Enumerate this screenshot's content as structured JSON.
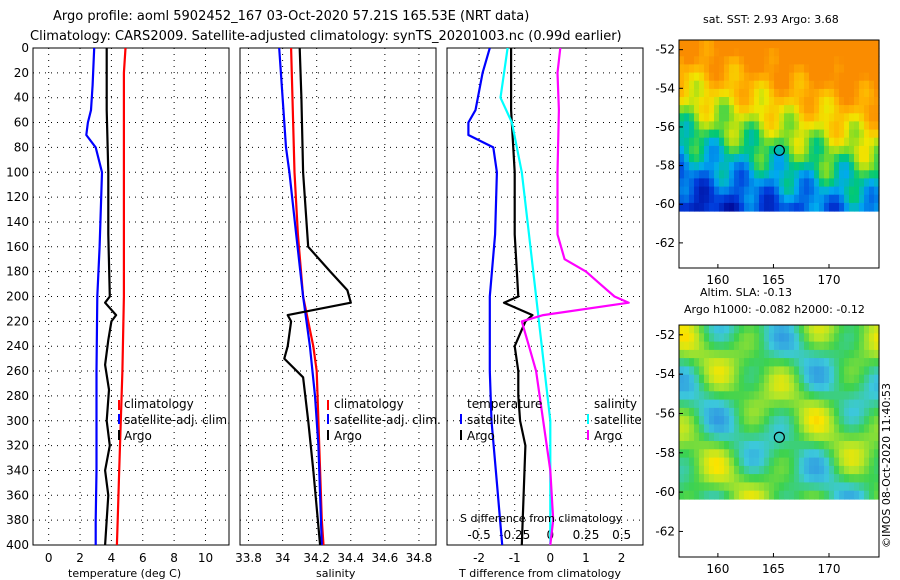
{
  "header": {
    "line1": "Argo profile: aoml 5902452_167 03-Oct-2020 57.21S 165.53E (NRT data)",
    "line2": "Climatology: CARS2009. Satellite-adjusted climatology: synTS_20201003.nc (0.99d earlier)"
  },
  "credit": "©IMOS 08-Oct-2020 11:40:53",
  "colors": {
    "climatology": "#ff0000",
    "satellite": "#0000ff",
    "argo": "#000000",
    "sal_satellite": "#00ffff",
    "sal_argo": "#ff00ff"
  },
  "chart_data": [
    {
      "type": "line",
      "name": "temperature-panel",
      "xlabel": "temperature (deg C)",
      "ylabel": "",
      "xlim": [
        -1,
        11.5
      ],
      "ylim": [
        400,
        0
      ],
      "xticks": [
        0,
        2,
        4,
        6,
        8,
        10
      ],
      "yticks": [
        0,
        20,
        40,
        60,
        80,
        100,
        120,
        140,
        160,
        180,
        200,
        220,
        240,
        260,
        280,
        300,
        320,
        340,
        360,
        380,
        400
      ],
      "legend": [
        "climatology",
        "satellite-adj. clim.",
        "Argo"
      ],
      "series": [
        {
          "name": "climatology",
          "color": "#ff0000",
          "depth": [
            0,
            20,
            60,
            100,
            160,
            200,
            260,
            300,
            340,
            380,
            400
          ],
          "values": [
            4.9,
            4.8,
            4.8,
            4.8,
            4.8,
            4.8,
            4.7,
            4.6,
            4.5,
            4.4,
            4.35
          ]
        },
        {
          "name": "satellite-adj. clim.",
          "color": "#0000ff",
          "depth": [
            0,
            30,
            50,
            60,
            70,
            80,
            100,
            160,
            200,
            260,
            300,
            340,
            380,
            400
          ],
          "values": [
            2.9,
            2.8,
            2.7,
            2.5,
            2.4,
            3.0,
            3.4,
            3.25,
            3.1,
            3.05,
            3.05,
            3.05,
            3.0,
            3.0
          ]
        },
        {
          "name": "Argo",
          "color": "#000000",
          "depth": [
            0,
            50,
            100,
            150,
            200,
            205,
            215,
            220,
            235,
            255,
            275,
            300,
            320,
            340,
            360,
            380,
            400
          ],
          "values": [
            3.7,
            3.7,
            3.8,
            3.8,
            3.9,
            3.6,
            4.3,
            4.0,
            3.8,
            3.6,
            3.85,
            3.7,
            3.9,
            3.6,
            3.8,
            3.7,
            3.6
          ]
        }
      ]
    },
    {
      "type": "line",
      "name": "salinity-panel",
      "xlabel": "salinity",
      "ylabel": "",
      "xlim": [
        33.75,
        34.9
      ],
      "ylim": [
        400,
        0
      ],
      "xticks": [
        33.8,
        34,
        34.2,
        34.4,
        34.6,
        34.8
      ],
      "legend": [
        "climatology",
        "satellite-adj. clim.",
        "Argo"
      ],
      "series": [
        {
          "name": "climatology",
          "color": "#ff0000",
          "depth": [
            0,
            50,
            100,
            150,
            200,
            220,
            240,
            260,
            300,
            340,
            380,
            400
          ],
          "values": [
            34.05,
            34.06,
            34.07,
            34.09,
            34.12,
            34.15,
            34.18,
            34.2,
            34.21,
            34.22,
            34.23,
            34.24
          ]
        },
        {
          "name": "satellite-adj. clim.",
          "color": "#0000ff",
          "depth": [
            0,
            40,
            80,
            100,
            150,
            200,
            240,
            280,
            320,
            360,
            400
          ],
          "values": [
            33.98,
            34.0,
            34.02,
            34.04,
            34.08,
            34.12,
            34.16,
            34.19,
            34.21,
            34.22,
            34.23
          ]
        },
        {
          "name": "Argo",
          "color": "#000000",
          "depth": [
            0,
            40,
            100,
            160,
            180,
            195,
            205,
            215,
            220,
            240,
            250,
            265,
            300,
            340,
            370,
            400
          ],
          "values": [
            34.1,
            34.11,
            34.12,
            34.15,
            34.28,
            34.38,
            34.4,
            34.03,
            34.05,
            34.03,
            34.01,
            34.12,
            34.15,
            34.18,
            34.2,
            34.22
          ]
        }
      ]
    },
    {
      "type": "line",
      "name": "difference-panel",
      "xlabel": "T difference from climatology",
      "xlabel2": "S difference from climatology",
      "xlim": [
        -2.9,
        2.6
      ],
      "ylim": [
        400,
        0
      ],
      "xticks_T": [
        -2,
        -1,
        0,
        1,
        2
      ],
      "xticks_S": [
        -0.5,
        -0.25,
        0,
        0.25,
        0.5
      ],
      "legend": {
        "temperature": [
          "satellite",
          "Argo"
        ],
        "salinity": [
          "satellite",
          "Argo"
        ]
      },
      "series": [
        {
          "name": "temperature satellite",
          "color": "#0000ff",
          "depth": [
            0,
            20,
            50,
            60,
            70,
            80,
            100,
            150,
            200,
            260,
            300,
            350,
            400
          ],
          "values": [
            -1.7,
            -1.9,
            -2.1,
            -2.3,
            -2.3,
            -1.6,
            -1.5,
            -1.55,
            -1.7,
            -1.7,
            -1.65,
            -1.5,
            -1.35
          ]
        },
        {
          "name": "temperature Argo",
          "color": "#000000",
          "depth": [
            0,
            50,
            100,
            150,
            200,
            205,
            215,
            220,
            240,
            260,
            280,
            300,
            320,
            360,
            400
          ],
          "values": [
            -1.1,
            -1.1,
            -1.0,
            -1.0,
            -0.9,
            -1.3,
            -0.5,
            -0.7,
            -1.0,
            -0.9,
            -0.9,
            -0.85,
            -0.7,
            -0.75,
            -0.8
          ]
        },
        {
          "name": "salinity satellite",
          "color": "#00ffff",
          "depth": [
            0,
            40,
            60,
            100,
            150,
            200,
            250,
            300,
            350,
            400
          ],
          "values": [
            -0.3,
            -0.35,
            -0.27,
            -0.2,
            -0.15,
            -0.1,
            -0.05,
            0.0,
            0.0,
            0.0
          ]
        },
        {
          "name": "salinity Argo",
          "color": "#ff00ff",
          "depth": [
            0,
            20,
            50,
            100,
            150,
            170,
            180,
            190,
            200,
            205,
            215,
            220,
            240,
            260,
            300,
            340,
            380,
            400
          ],
          "values": [
            0.07,
            0.05,
            0.06,
            0.05,
            0.05,
            0.1,
            0.25,
            0.35,
            0.45,
            0.55,
            -0.05,
            -0.2,
            -0.15,
            -0.1,
            -0.05,
            0.0,
            0.02,
            0.0
          ]
        }
      ]
    },
    {
      "type": "heatmap",
      "name": "sst-map",
      "title": "sat. SST: 2.93 Argo: 3.68",
      "xlim": [
        156.5,
        174.5
      ],
      "ylim": [
        -63.3,
        -51.5
      ],
      "xticks": [
        160,
        165,
        170
      ],
      "yticks": [
        -52,
        -54,
        -56,
        -58,
        -60,
        -62
      ],
      "float_lon": 165.53,
      "float_lat": -57.21
    },
    {
      "type": "heatmap",
      "name": "sla-map",
      "title": "Altim. SLA: -0.13",
      "subtitle": "Argo h1000: -0.082 h2000: -0.12",
      "xlim": [
        156.5,
        174.5
      ],
      "ylim": [
        -63.3,
        -51.5
      ],
      "xticks": [
        160,
        165,
        170
      ],
      "yticks": [
        -52,
        -54,
        -56,
        -58,
        -60,
        -62
      ],
      "float_lon": 165.53,
      "float_lat": -57.21
    }
  ]
}
